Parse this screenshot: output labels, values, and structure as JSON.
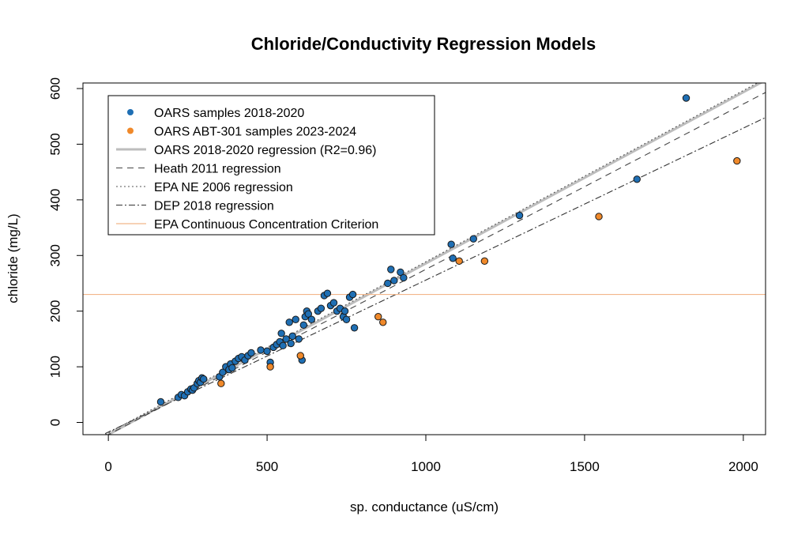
{
  "chart_data": {
    "type": "scatter",
    "title": "Chloride/Conductivity Regression Models",
    "xlabel": "sp. conductance (uS/cm)",
    "ylabel": "chloride (mg/L)",
    "xlim": [
      -80,
      2070
    ],
    "ylim": [
      -22,
      610
    ],
    "xticks": [
      0,
      500,
      1000,
      1500,
      2000
    ],
    "yticks": [
      0,
      100,
      200,
      300,
      400,
      500,
      600
    ],
    "legend_position": "top-left",
    "series": [
      {
        "name": "OARS samples 2018-2020",
        "kind": "points",
        "color": "#1f6fb4",
        "x": [
          165,
          220,
          230,
          240,
          250,
          260,
          265,
          270,
          280,
          285,
          290,
          295,
          300,
          350,
          360,
          370,
          380,
          385,
          390,
          400,
          410,
          420,
          430,
          440,
          450,
          480,
          500,
          510,
          520,
          530,
          540,
          545,
          550,
          560,
          570,
          575,
          580,
          590,
          600,
          610,
          615,
          620,
          625,
          630,
          640,
          660,
          670,
          680,
          690,
          700,
          710,
          720,
          730,
          740,
          745,
          750,
          760,
          770,
          775,
          880,
          890,
          900,
          920,
          930,
          1080,
          1085,
          1150,
          1295,
          1665,
          1820
        ],
        "y": [
          37,
          45,
          50,
          48,
          55,
          60,
          58,
          62,
          70,
          75,
          72,
          80,
          78,
          82,
          90,
          100,
          95,
          105,
          98,
          110,
          115,
          118,
          112,
          120,
          125,
          130,
          128,
          108,
          135,
          140,
          145,
          160,
          138,
          150,
          180,
          142,
          155,
          185,
          150,
          112,
          175,
          190,
          200,
          195,
          185,
          200,
          205,
          228,
          232,
          210,
          215,
          200,
          205,
          190,
          200,
          185,
          225,
          230,
          170,
          250,
          275,
          255,
          270,
          260,
          320,
          295,
          330,
          372,
          437,
          583
        ]
      },
      {
        "name": "OARS ABT-301 samples 2023-2024",
        "kind": "points",
        "color": "#f0892a",
        "x": [
          355,
          510,
          605,
          850,
          865,
          1105,
          1185,
          1545,
          1980
        ],
        "y": [
          70,
          100,
          120,
          190,
          180,
          290,
          290,
          370,
          470
        ]
      },
      {
        "name": "OARS 2018-2020 regression (R2=0.96)",
        "kind": "line",
        "color": "#bdbdbd",
        "x": [
          -10,
          2070
        ],
        "y": [
          -25,
          615
        ]
      },
      {
        "name": "Heath 2011 regression",
        "kind": "line",
        "color": "#444444",
        "x": [
          -10,
          2070
        ],
        "y": [
          -25,
          593
        ]
      },
      {
        "name": "EPA NE 2006 regression",
        "kind": "line",
        "color": "#555555",
        "x": [
          -10,
          2070
        ],
        "y": [
          -22,
          618
        ]
      },
      {
        "name": "DEP 2018 regression",
        "kind": "line",
        "color": "#333333",
        "x": [
          -10,
          2070
        ],
        "y": [
          -20,
          548
        ]
      },
      {
        "name": "EPA Continuous Concentration Criterion",
        "kind": "hline",
        "color": "#f2b68a",
        "y": [
          230
        ]
      }
    ]
  }
}
